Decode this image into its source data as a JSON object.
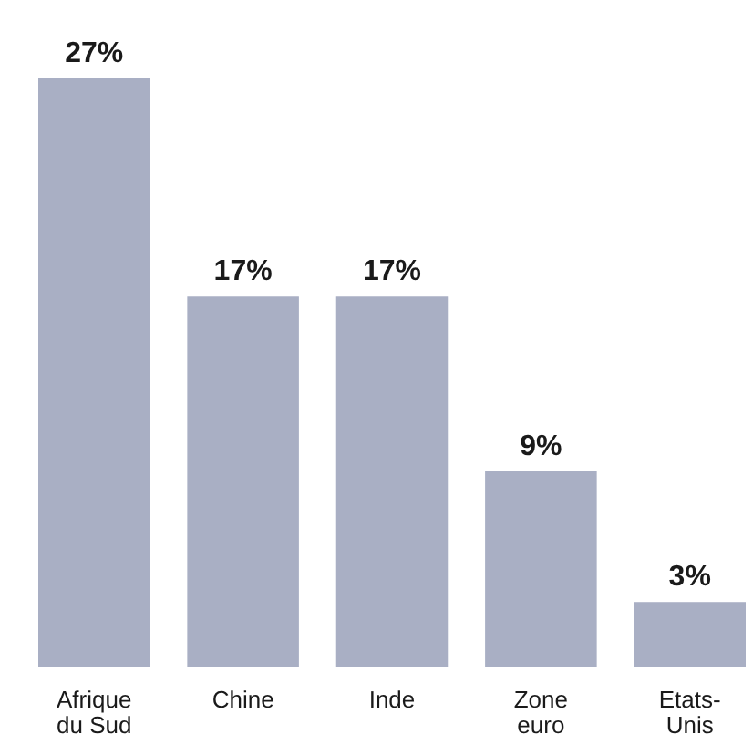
{
  "chart_data": {
    "type": "bar",
    "categories": [
      "Afrique du Sud",
      "Chine",
      "Inde",
      "Zone euro",
      "Etats-Unis"
    ],
    "values": [
      27,
      17,
      17,
      9,
      3
    ],
    "color": "#a9afc4",
    "data_labels": true,
    "value_labels": [
      "27%",
      "17%",
      "17%",
      "9%",
      "3%"
    ]
  }
}
